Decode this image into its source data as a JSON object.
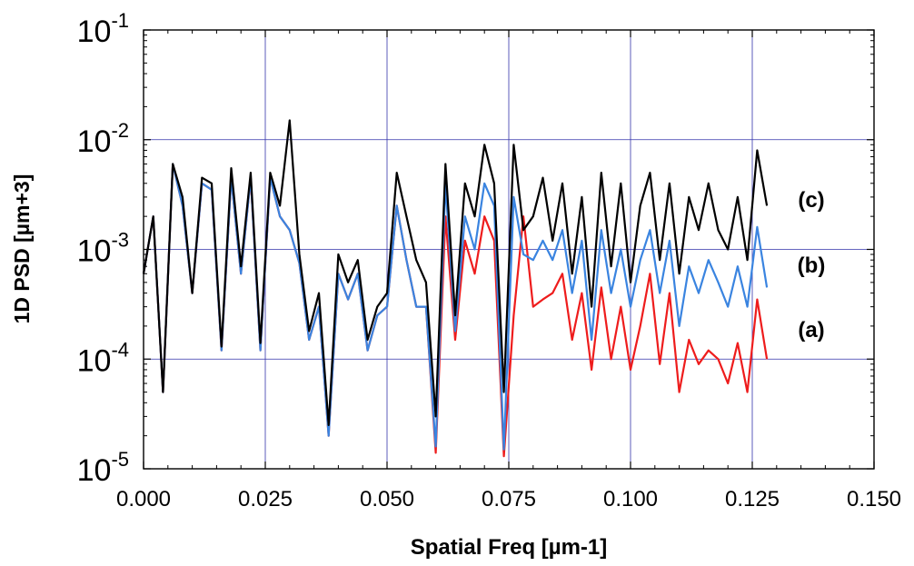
{
  "chart_data": {
    "type": "line",
    "xlabel": "Spatial Freq [µm-1]",
    "ylabel": "1D PSD [µm+3]",
    "xlim": [
      0,
      0.15
    ],
    "ylim": [
      1e-05,
      0.1
    ],
    "yscale": "log",
    "grid": true,
    "x_ticks": [
      "0.000",
      "0.025",
      "0.050",
      "0.075",
      "0.100",
      "0.125",
      "0.150"
    ],
    "y_ticks": [
      {
        "base": "10",
        "exp": "-5"
      },
      {
        "base": "10",
        "exp": "-4"
      },
      {
        "base": "10",
        "exp": "-3"
      },
      {
        "base": "10",
        "exp": "-2"
      },
      {
        "base": "10",
        "exp": "-1"
      }
    ],
    "annotations": [
      "(c)",
      "(b)",
      "(a)"
    ],
    "colors": {
      "a": "#ee1c1c",
      "b": "#3a84e0",
      "c": "#000000",
      "grid": "#3333aa"
    },
    "x": [
      0.0,
      0.002,
      0.004,
      0.006,
      0.008,
      0.01,
      0.012,
      0.014,
      0.016,
      0.018,
      0.02,
      0.022,
      0.024,
      0.026,
      0.028,
      0.03,
      0.032,
      0.034,
      0.036,
      0.038,
      0.04,
      0.042,
      0.044,
      0.046,
      0.048,
      0.05,
      0.052,
      0.054,
      0.056,
      0.058,
      0.06,
      0.062,
      0.064,
      0.066,
      0.068,
      0.07,
      0.072,
      0.074,
      0.076,
      0.078,
      0.08,
      0.082,
      0.084,
      0.086,
      0.088,
      0.09,
      0.092,
      0.094,
      0.096,
      0.098,
      0.1,
      0.102,
      0.104,
      0.106,
      0.108,
      0.11,
      0.112,
      0.114,
      0.116,
      0.118,
      0.12,
      0.122,
      0.124,
      0.126,
      0.128
    ],
    "series": [
      {
        "name": "(a)",
        "values": [
          0.0006,
          0.002,
          5e-05,
          0.006,
          0.0025,
          0.0004,
          0.004,
          0.0035,
          0.00012,
          0.0045,
          0.0006,
          0.0045,
          0.00012,
          0.0045,
          0.002,
          0.0015,
          0.00075,
          0.00015,
          0.0003,
          2e-05,
          0.0006,
          0.00035,
          0.0006,
          0.00012,
          0.00025,
          0.0003,
          0.0025,
          0.0008,
          0.0003,
          0.0003,
          1.4e-05,
          0.002,
          0.00015,
          0.0012,
          0.0006,
          0.002,
          0.0012,
          1.3e-05,
          0.00025,
          0.002,
          0.0003,
          0.00035,
          0.0004,
          0.0006,
          0.00015,
          0.0004,
          8e-05,
          0.00045,
          0.0001,
          0.0003,
          8e-05,
          0.0002,
          0.0006,
          9e-05,
          0.0004,
          5e-05,
          0.00015,
          9e-05,
          0.00012,
          0.0001,
          6e-05,
          0.00014,
          5e-05,
          0.00035,
          0.0001
        ]
      },
      {
        "name": "(b)",
        "values": [
          0.0006,
          0.002,
          5e-05,
          0.006,
          0.0025,
          0.0004,
          0.004,
          0.0035,
          0.00012,
          0.0045,
          0.0006,
          0.0045,
          0.00012,
          0.0045,
          0.002,
          0.0015,
          0.00075,
          0.00015,
          0.0003,
          2e-05,
          0.0006,
          0.00035,
          0.0006,
          0.00012,
          0.00025,
          0.0003,
          0.0025,
          0.0008,
          0.0003,
          0.0003,
          1.6e-05,
          0.004,
          0.00018,
          0.002,
          0.001,
          0.004,
          0.0025,
          1.5e-05,
          0.003,
          0.0009,
          0.0008,
          0.0012,
          0.0008,
          0.0015,
          0.0004,
          0.0012,
          0.00015,
          0.0015,
          0.0004,
          0.001,
          0.0003,
          0.0008,
          0.0015,
          0.0004,
          0.0012,
          0.0002,
          0.0007,
          0.0004,
          0.0008,
          0.0005,
          0.0003,
          0.0007,
          0.0003,
          0.0016,
          0.00045
        ]
      },
      {
        "name": "(c)",
        "values": [
          0.0006,
          0.002,
          5e-05,
          0.006,
          0.003,
          0.0004,
          0.0045,
          0.004,
          0.00013,
          0.0055,
          0.0007,
          0.005,
          0.00014,
          0.005,
          0.0025,
          0.015,
          0.0009,
          0.00018,
          0.0004,
          2.5e-05,
          0.0009,
          0.0005,
          0.0008,
          0.00015,
          0.0003,
          0.0004,
          0.005,
          0.002,
          0.0008,
          0.0005,
          3e-05,
          0.006,
          0.00025,
          0.004,
          0.002,
          0.009,
          0.004,
          5e-05,
          0.009,
          0.0015,
          0.002,
          0.0045,
          0.0012,
          0.004,
          0.0006,
          0.003,
          0.0003,
          0.005,
          0.0007,
          0.004,
          0.0005,
          0.0025,
          0.005,
          0.0008,
          0.004,
          0.0006,
          0.003,
          0.0015,
          0.004,
          0.0015,
          0.001,
          0.003,
          0.0008,
          0.008,
          0.0025
        ]
      }
    ]
  }
}
